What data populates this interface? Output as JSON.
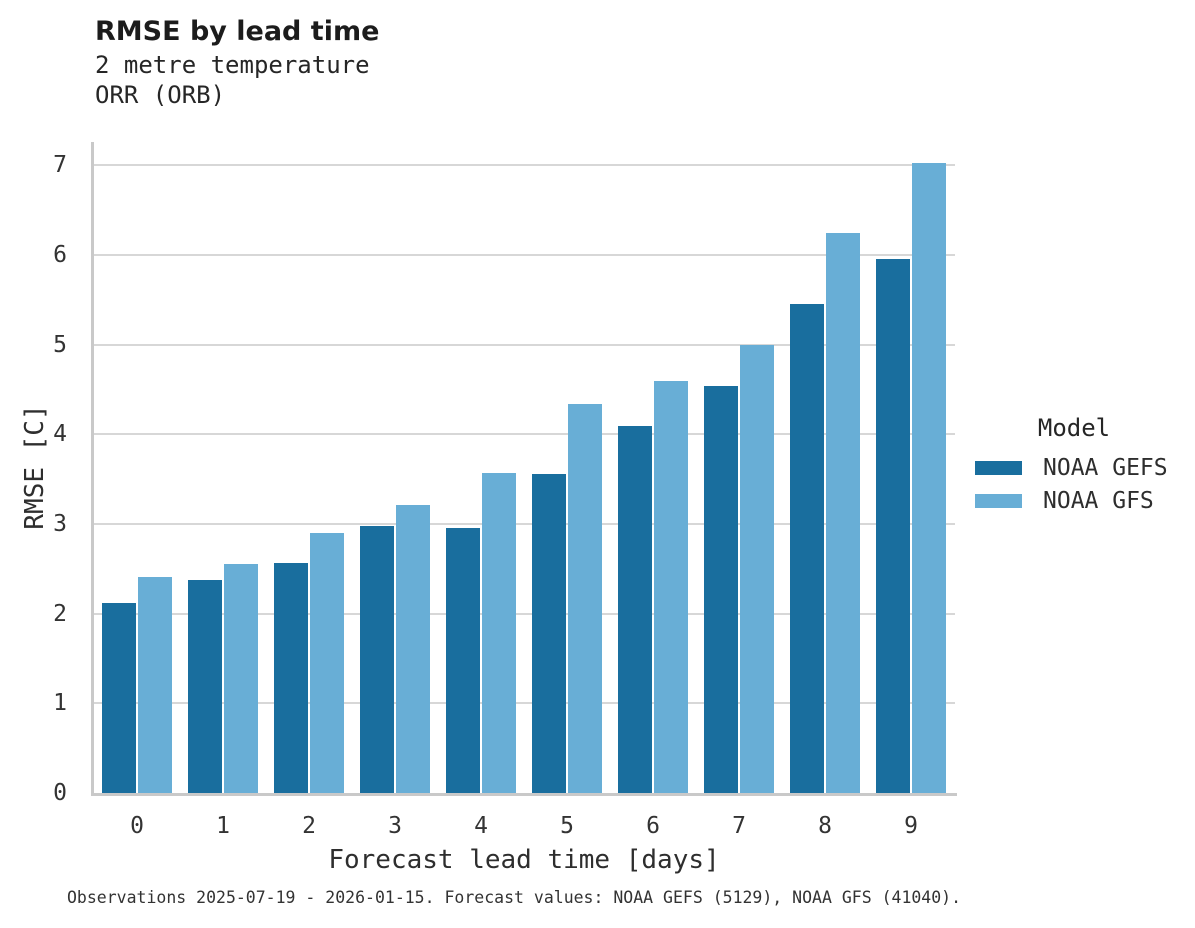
{
  "header": {
    "title": "RMSE by lead time",
    "subtitle_line1": "2 metre temperature",
    "subtitle_line2": "ORR (ORB)"
  },
  "chart_data": {
    "type": "bar",
    "title": "RMSE by lead time",
    "subtitle": [
      "2 metre temperature",
      "ORR (ORB)"
    ],
    "categories": [
      "0",
      "1",
      "2",
      "3",
      "4",
      "5",
      "6",
      "7",
      "8",
      "9"
    ],
    "series": [
      {
        "name": "NOAA GEFS",
        "color": "#196e9e",
        "values": [
          2.12,
          2.38,
          2.57,
          2.98,
          2.95,
          3.56,
          4.09,
          4.54,
          5.45,
          5.95
        ]
      },
      {
        "name": "NOAA GFS",
        "color": "#68aed6",
        "values": [
          2.41,
          2.55,
          2.9,
          3.21,
          3.57,
          4.34,
          4.6,
          5.0,
          6.24,
          7.03
        ]
      }
    ],
    "xlabel": "Forecast lead time [days]",
    "ylabel": "RMSE [C]",
    "ylim": [
      0,
      7.26
    ],
    "yticks": [
      0,
      1,
      2,
      3,
      4,
      5,
      6,
      7
    ],
    "grid": true,
    "legend_title": "Model",
    "legend_position": "right"
  },
  "legend": {
    "title": "Model",
    "items": [
      {
        "label": "NOAA GEFS",
        "color": "#196e9e"
      },
      {
        "label": "NOAA GFS",
        "color": "#68aed6"
      }
    ]
  },
  "footer": {
    "note": "Observations 2025-07-19 - 2026-01-15. Forecast values: NOAA GEFS (5129), NOAA GFS (41040)."
  },
  "colors": {
    "gridline": "#d7d7d7",
    "spine": "#c9c9c9",
    "series_dark": "#196e9e",
    "series_light": "#68aed6"
  }
}
